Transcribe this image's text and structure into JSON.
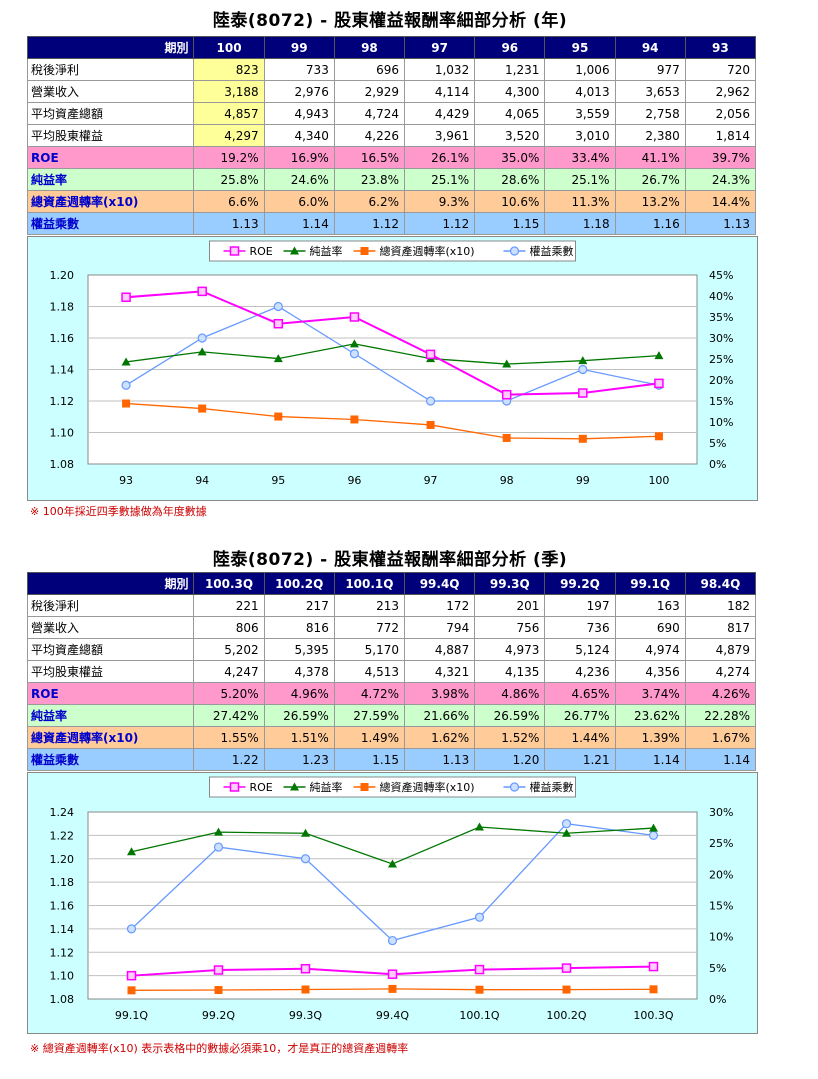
{
  "annual": {
    "title": "陸泰(8072) -  股東權益報酬率細部分析 (年)",
    "period_label": "期別",
    "periods": [
      "100",
      "99",
      "98",
      "97",
      "96",
      "95",
      "94",
      "93"
    ],
    "rows": [
      {
        "label": "稅後淨利",
        "values": [
          "823",
          "733",
          "696",
          "1,032",
          "1,231",
          "1,006",
          "977",
          "720"
        ]
      },
      {
        "label": "營業收入",
        "values": [
          "3,188",
          "2,976",
          "2,929",
          "4,114",
          "4,300",
          "4,013",
          "3,653",
          "2,962"
        ]
      },
      {
        "label": "平均資產總額",
        "values": [
          "4,857",
          "4,943",
          "4,724",
          "4,429",
          "4,065",
          "3,559",
          "2,758",
          "2,056"
        ]
      },
      {
        "label": "平均股東權益",
        "values": [
          "4,297",
          "4,340",
          "4,226",
          "3,961",
          "3,520",
          "3,010",
          "2,380",
          "1,814"
        ]
      },
      {
        "label": "ROE",
        "values": [
          "19.2%",
          "16.9%",
          "16.5%",
          "26.1%",
          "35.0%",
          "33.4%",
          "41.1%",
          "39.7%"
        ]
      },
      {
        "label": "純益率",
        "values": [
          "25.8%",
          "24.6%",
          "23.8%",
          "25.1%",
          "28.6%",
          "25.1%",
          "26.7%",
          "24.3%"
        ]
      },
      {
        "label": "總資產週轉率(x10)",
        "values": [
          "6.6%",
          "6.0%",
          "6.2%",
          "9.3%",
          "10.6%",
          "11.3%",
          "13.2%",
          "14.4%"
        ]
      },
      {
        "label": "權益乘數",
        "values": [
          "1.13",
          "1.14",
          "1.12",
          "1.12",
          "1.15",
          "1.18",
          "1.16",
          "1.13"
        ]
      }
    ],
    "note": "※ 100年採近四季數據做為年度數據"
  },
  "quarterly": {
    "title": "陸泰(8072) -  股東權益報酬率細部分析 (季)",
    "period_label": "期別",
    "periods": [
      "100.3Q",
      "100.2Q",
      "100.1Q",
      "99.4Q",
      "99.3Q",
      "99.2Q",
      "99.1Q",
      "98.4Q"
    ],
    "rows": [
      {
        "label": "稅後淨利",
        "values": [
          "221",
          "217",
          "213",
          "172",
          "201",
          "197",
          "163",
          "182"
        ]
      },
      {
        "label": "營業收入",
        "values": [
          "806",
          "816",
          "772",
          "794",
          "756",
          "736",
          "690",
          "817"
        ]
      },
      {
        "label": "平均資產總額",
        "values": [
          "5,202",
          "5,395",
          "5,170",
          "4,887",
          "4,973",
          "5,124",
          "4,974",
          "4,879"
        ]
      },
      {
        "label": "平均股東權益",
        "values": [
          "4,247",
          "4,378",
          "4,513",
          "4,321",
          "4,135",
          "4,236",
          "4,356",
          "4,274"
        ]
      },
      {
        "label": "ROE",
        "values": [
          "5.20%",
          "4.96%",
          "4.72%",
          "3.98%",
          "4.86%",
          "4.65%",
          "3.74%",
          "4.26%"
        ]
      },
      {
        "label": "純益率",
        "values": [
          "27.42%",
          "26.59%",
          "27.59%",
          "21.66%",
          "26.59%",
          "26.77%",
          "23.62%",
          "22.28%"
        ]
      },
      {
        "label": "總資產週轉率(x10)",
        "values": [
          "1.55%",
          "1.51%",
          "1.49%",
          "1.62%",
          "1.52%",
          "1.44%",
          "1.39%",
          "1.67%"
        ]
      },
      {
        "label": "權益乘數",
        "values": [
          "1.22",
          "1.23",
          "1.15",
          "1.13",
          "1.20",
          "1.21",
          "1.14",
          "1.14"
        ]
      }
    ],
    "note": "※ 總資產週轉率(x10) 表示表格中的數據必須乘10，才是真正的總資產週轉率"
  },
  "legend_labels": [
    "ROE",
    "純益率",
    "總資產週轉率(x10)",
    "權益乘數"
  ],
  "colors": {
    "roe": "#ff00ff",
    "margin": "#007700",
    "turnover": "#ff6600",
    "multiplier": "#6699ff"
  },
  "chart_data": [
    {
      "type": "line",
      "categories": [
        "93",
        "94",
        "95",
        "96",
        "97",
        "98",
        "99",
        "100"
      ],
      "y_left": {
        "ylim": [
          1.08,
          1.2
        ],
        "ticks": [
          "1.08",
          "1.10",
          "1.12",
          "1.14",
          "1.16",
          "1.18",
          "1.20"
        ]
      },
      "y_right": {
        "ylim": [
          0,
          45
        ],
        "ticks": [
          "0%",
          "5%",
          "10%",
          "15%",
          "20%",
          "25%",
          "30%",
          "35%",
          "40%",
          "45%"
        ]
      },
      "series": [
        {
          "name": "ROE",
          "axis": "right",
          "values": [
            39.7,
            41.1,
            33.4,
            35.0,
            26.1,
            16.5,
            16.9,
            19.2
          ]
        },
        {
          "name": "純益率",
          "axis": "right",
          "values": [
            24.3,
            26.7,
            25.1,
            28.6,
            25.1,
            23.8,
            24.6,
            25.8
          ]
        },
        {
          "name": "總資產週轉率(x10)",
          "axis": "right",
          "values": [
            14.4,
            13.2,
            11.3,
            10.6,
            9.3,
            6.2,
            6.0,
            6.6
          ]
        },
        {
          "name": "權益乘數",
          "axis": "left",
          "values": [
            1.13,
            1.16,
            1.18,
            1.15,
            1.12,
            1.12,
            1.14,
            1.13
          ]
        }
      ],
      "grid": true,
      "legend": "top-center"
    },
    {
      "type": "line",
      "categories": [
        "99.1Q",
        "99.2Q",
        "99.3Q",
        "99.4Q",
        "100.1Q",
        "100.2Q",
        "100.3Q"
      ],
      "y_left": {
        "ylim": [
          1.08,
          1.24
        ],
        "ticks": [
          "1.08",
          "1.10",
          "1.12",
          "1.14",
          "1.16",
          "1.18",
          "1.20",
          "1.22",
          "1.24"
        ]
      },
      "y_right": {
        "ylim": [
          0,
          30
        ],
        "ticks": [
          "0%",
          "5%",
          "10%",
          "15%",
          "20%",
          "25%",
          "30%"
        ]
      },
      "series": [
        {
          "name": "ROE",
          "axis": "right",
          "values": [
            3.74,
            4.65,
            4.86,
            3.98,
            4.72,
            4.96,
            5.2
          ]
        },
        {
          "name": "純益率",
          "axis": "right",
          "values": [
            23.62,
            26.77,
            26.59,
            21.66,
            27.59,
            26.59,
            27.42
          ]
        },
        {
          "name": "總資產週轉率(x10)",
          "axis": "right",
          "values": [
            1.39,
            1.44,
            1.52,
            1.62,
            1.49,
            1.51,
            1.55
          ]
        },
        {
          "name": "權益乘數",
          "axis": "left",
          "values": [
            1.14,
            1.21,
            1.2,
            1.13,
            1.15,
            1.23,
            1.22
          ]
        }
      ],
      "grid": true,
      "legend": "top-center"
    }
  ]
}
